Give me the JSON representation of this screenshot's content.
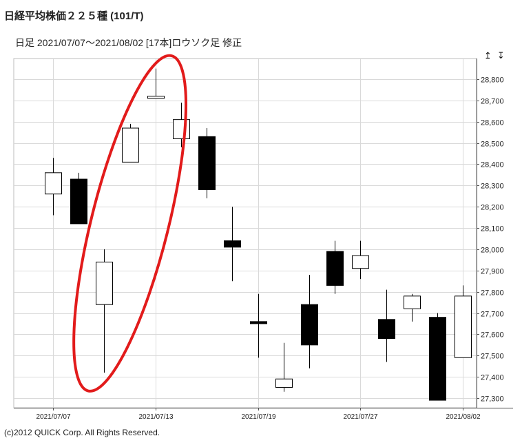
{
  "header": {
    "title": "日経平均株価２２５種 (101/T)",
    "subtitle": "日足  2021/07/07～2021/08/02 [17本]ロウソク足 修正"
  },
  "toolbar": {
    "scale_arrows": "↥ ↧"
  },
  "footer": {
    "copyright": "(c)2012 QUICK Corp. All Rights Reserved."
  },
  "colors": {
    "up_fill": "#ffffff",
    "down_fill": "#000000",
    "grid": "#d9d9d9",
    "annotation": "#e21b1b"
  },
  "chart_data": {
    "type": "candlestick",
    "title": "日経平均株価２２５種 (101/T)",
    "ylim": [
      27270,
      28920
    ],
    "y_ticks": [
      27300,
      27400,
      27500,
      27600,
      27700,
      27800,
      27900,
      28000,
      28100,
      28200,
      28300,
      28400,
      28500,
      28600,
      28700,
      28800
    ],
    "y_tick_labels": [
      "27,300",
      "27,400",
      "27,500",
      "27,600",
      "27,700",
      "27,800",
      "27,900",
      "28,000",
      "28,100",
      "28,200",
      "28,300",
      "28,400",
      "28,500",
      "28,600",
      "28,700",
      "28,800"
    ],
    "x_tick_labels": [
      {
        "date": "2021/07/07",
        "index": 0
      },
      {
        "date": "2021/07/13",
        "index": 4
      },
      {
        "date": "2021/07/19",
        "index": 8
      },
      {
        "date": "2021/07/27",
        "index": 12
      },
      {
        "date": "2021/08/02",
        "index": 16
      }
    ],
    "candles": [
      {
        "open": 28260,
        "high": 28430,
        "low": 28160,
        "close": 28360
      },
      {
        "open": 28330,
        "high": 28360,
        "low": 28120,
        "close": 28120
      },
      {
        "open": 27740,
        "high": 28000,
        "low": 27420,
        "close": 27940
      },
      {
        "open": 28410,
        "high": 28590,
        "low": 28410,
        "close": 28570
      },
      {
        "open": 28710,
        "high": 28850,
        "low": 28710,
        "close": 28720
      },
      {
        "open": 28520,
        "high": 28690,
        "low": 28480,
        "close": 28610
      },
      {
        "open": 28530,
        "high": 28570,
        "low": 28240,
        "close": 28280
      },
      {
        "open": 28040,
        "high": 28200,
        "low": 27850,
        "close": 28010
      },
      {
        "open": 27660,
        "high": 27790,
        "low": 27490,
        "close": 27650
      },
      {
        "open": 27350,
        "high": 27560,
        "low": 27330,
        "close": 27390
      },
      {
        "open": 27740,
        "high": 27880,
        "low": 27440,
        "close": 27550
      },
      {
        "open": 27990,
        "high": 28040,
        "low": 27790,
        "close": 27830
      },
      {
        "open": 27910,
        "high": 28040,
        "low": 27860,
        "close": 27970
      },
      {
        "open": 27670,
        "high": 27810,
        "low": 27470,
        "close": 27580
      },
      {
        "open": 27720,
        "high": 27790,
        "low": 27660,
        "close": 27780
      },
      {
        "open": 27680,
        "high": 27700,
        "low": 27290,
        "close": 27290
      },
      {
        "open": 27490,
        "high": 27830,
        "low": 27490,
        "close": 27780
      }
    ],
    "annotation": {
      "shape": "ellipse",
      "encircles_candles": [
        2,
        3,
        4
      ]
    }
  }
}
